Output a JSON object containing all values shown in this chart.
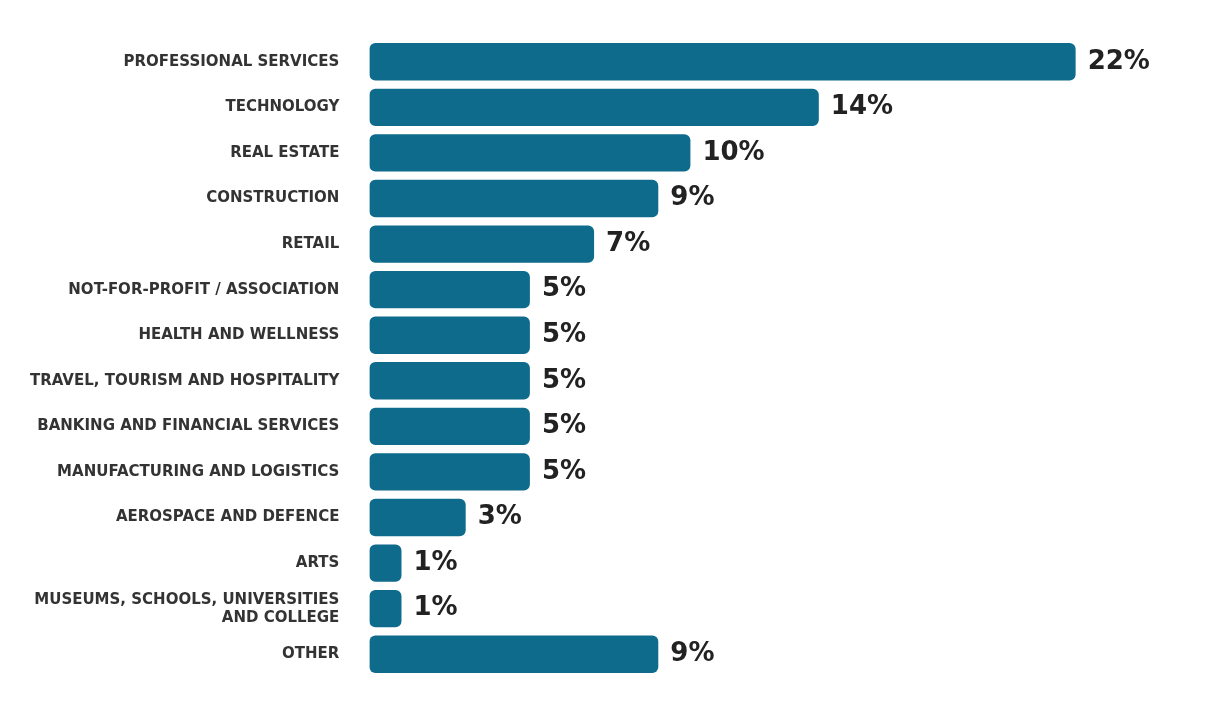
{
  "chart_data": {
    "type": "bar",
    "orientation": "horizontal",
    "categories": [
      "PROFESSIONAL SERVICES",
      "TECHNOLOGY",
      "REAL ESTATE",
      "CONSTRUCTION",
      "RETAIL",
      "NOT-FOR-PROFIT / ASSOCIATION",
      "HEALTH AND WELLNESS",
      "TRAVEL, TOURISM AND HOSPITALITY",
      "BANKING AND FINANCIAL SERVICES",
      "MANUFACTURING AND LOGISTICS",
      "AEROSPACE AND DEFENCE",
      "ARTS",
      "MUSEUMS, SCHOOLS, UNIVERSITIES AND COLLEGE",
      "OTHER"
    ],
    "values": [
      22,
      14,
      10,
      9,
      7,
      5,
      5,
      5,
      5,
      5,
      3,
      1,
      1,
      9
    ],
    "value_labels": [
      "22%",
      "14%",
      "10%",
      "9%",
      "7%",
      "5%",
      "5%",
      "5%",
      "5%",
      "5%",
      "3%",
      "1%",
      "1%",
      "9%"
    ],
    "color": "#0e6b8c",
    "legend": false
  }
}
